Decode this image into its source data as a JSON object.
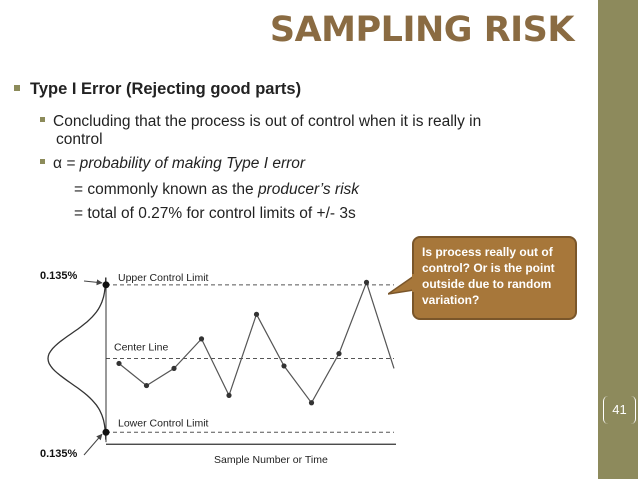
{
  "title": "SAMPLING RISK",
  "bullets": {
    "level1": "Type I Error (Rejecting good parts)",
    "level2_line1": "Concluding that the process is out of control when it is really in",
    "level2_line2": "control",
    "alpha_symbol": "α",
    "alpha_text": " = probability of making Type I error",
    "producer_prefix": "= commonly known as the ",
    "producer_em": "producer’s risk",
    "limits_text": "= total of 0.27% for control limits of +/- 3s"
  },
  "callout": {
    "text": "Is process really out of control? Or is the point outside due to random variation?"
  },
  "chart_data": {
    "type": "line",
    "title": "",
    "xlabel": "Sample Number or Time",
    "ylabel": "",
    "labels": {
      "upper_tail": "0.135%",
      "lower_tail": "0.135%",
      "ucl": "Upper Control Limit",
      "cl": "Center Line",
      "lcl": "Lower Control Limit"
    },
    "limits": {
      "ucl": 3,
      "cl": 0,
      "lcl": -3
    },
    "ylim": [
      -3.6,
      3.4
    ],
    "x": [
      1,
      2,
      3,
      4,
      5,
      6,
      7,
      8,
      9,
      10,
      11
    ],
    "values": [
      -0.2,
      -1.1,
      -0.4,
      0.8,
      -1.5,
      1.8,
      -0.3,
      -1.8,
      0.2,
      3.1,
      -0.4
    ],
    "colors": {
      "line": "#555555",
      "axis": "#333333"
    }
  },
  "page_number": "41",
  "colors": {
    "title": "#8a6b42",
    "sidebar": "#8d8a5c",
    "callout": "#a7773a",
    "bullet": "#8c8b5a"
  }
}
